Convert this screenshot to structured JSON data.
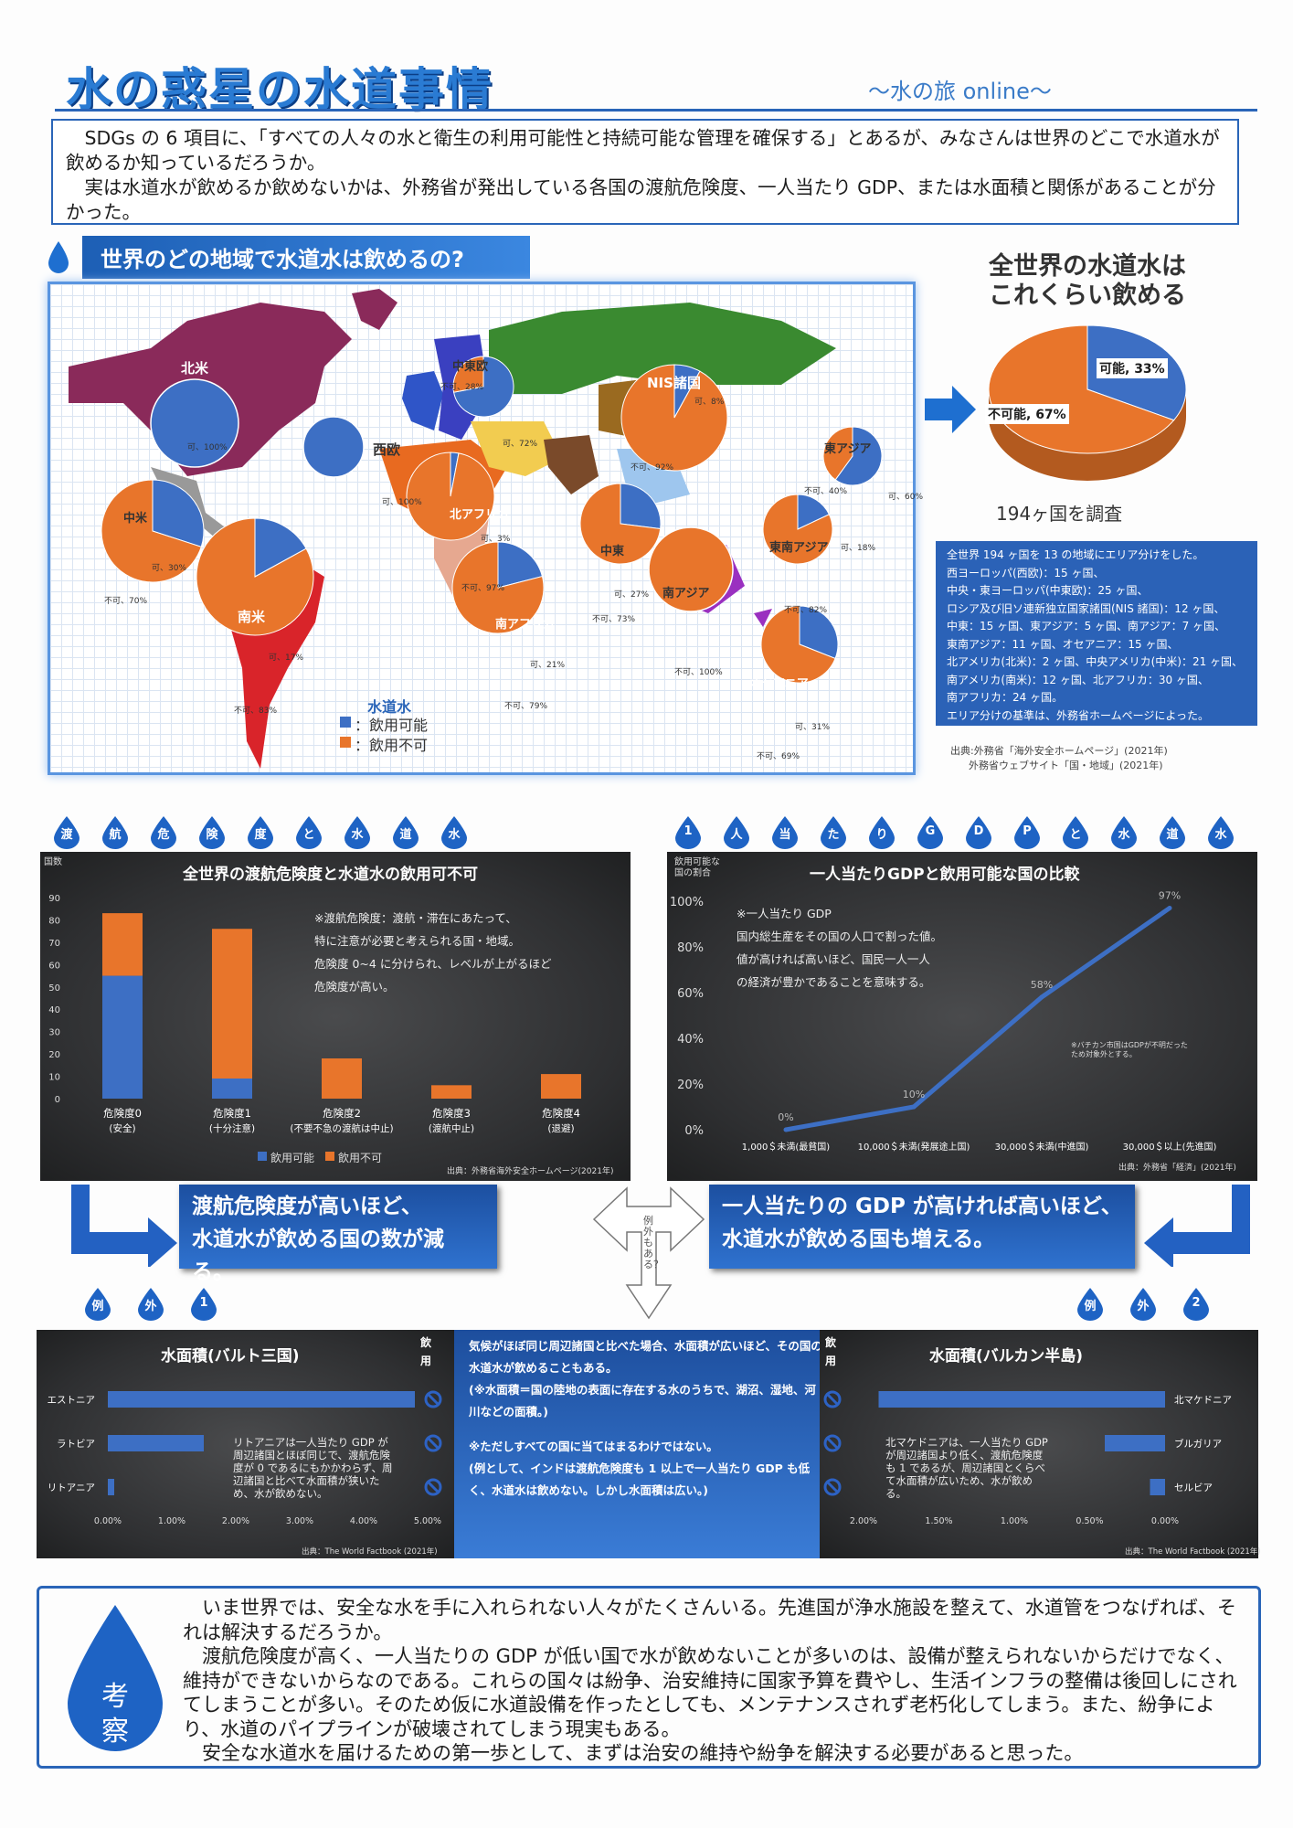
{
  "header": {
    "title": "水の惑星の水道事情",
    "subtitle": "〜水の旅 online〜"
  },
  "intro": {
    "p1": "SDGs の 6 項目に、「すべての人々の水と衛生の利用可能性と持続可能な管理を確保する」とあるが、みなさんは世界のどこで水道水が飲めるか知っているだろうか。",
    "p2": "実は水道水が飲めるか飲めないかは、外務省が発出している各国の渡航危険度、一人当たり GDP、または水面積と関係があることが分かった。"
  },
  "map": {
    "heading": "世界のどの地域で水道水は飲めるの?",
    "legend": {
      "title": "水道水",
      "ok": "：飲用可能",
      "ng": "：飲用不可"
    },
    "regions": [
      {
        "name": "北米",
        "ok": 100,
        "ok_label": "可、100%",
        "ng_label": ""
      },
      {
        "name": "中東欧",
        "ok": 72,
        "ok_label": "可、72%",
        "ng_label": "不可、28%"
      },
      {
        "name": "西欧",
        "ok": 100,
        "ok_label": "可、100%",
        "ng_label": ""
      },
      {
        "name": "NIS諸国",
        "ok": 8,
        "ok_label": "可、8%",
        "ng_label": "不可、92%"
      },
      {
        "name": "東アジア",
        "ok": 60,
        "ok_label": "可、60%",
        "ng_label": "不可、40%"
      },
      {
        "name": "中米",
        "ok": 30,
        "ok_label": "可、30%",
        "ng_label": "不可、70%"
      },
      {
        "name": "北アフリカ",
        "ok": 3,
        "ok_label": "可、3%",
        "ng_label": "不可、97%"
      },
      {
        "name": "中東",
        "ok": 27,
        "ok_label": "可、27%",
        "ng_label": "不可、73%"
      },
      {
        "name": "南アジア",
        "ok": 0,
        "ok_label": "",
        "ng_label": "不可、100%"
      },
      {
        "name": "東南アジア",
        "ok": 18,
        "ok_label": "可、18%",
        "ng_label": "不可、82%"
      },
      {
        "name": "南米",
        "ok": 17,
        "ok_label": "可、17%",
        "ng_label": "不可、83%"
      },
      {
        "name": "南アフリカ",
        "ok": 21,
        "ok_label": "可、21%",
        "ng_label": "不可、79%"
      },
      {
        "name": "オセアニア",
        "ok": 31,
        "ok_label": "可、31%",
        "ng_label": "不可、69%"
      }
    ]
  },
  "world": {
    "heading1": "全世界の水道水は",
    "heading2": "これくらい飲める",
    "ok_label": "可能, 33%",
    "ng_label": "不可能, 67%",
    "ok": 33,
    "surveyed": "194ヶ国を調査"
  },
  "area_box": [
    "全世界 194 ヶ国を 13 の地域にエリア分けをした。",
    "西ヨーロッパ(西欧)：15 ヶ国、",
    "中央・東ヨーロッパ(中東欧)：25 ヶ国、",
    "ロシア及び旧ソ連新独立国家諸国(NIS 諸国)：12 ヶ国、",
    "中東：15 ヶ国、東アジア：5 ヶ国、南アジア：7 ヶ国、",
    "東南アジア：11 ヶ国、オセアニア：15 ヶ国、",
    "北アメリカ(北米)：2 ヶ国、中央アメリカ(中米)：21 ヶ国、",
    "南アメリカ(南米)：12 ヶ国、北アフリカ：30 ヶ国、",
    "南アフリカ：24 ヶ国。",
    "エリア分けの基準は、外務省ホームページによった。"
  ],
  "sources": {
    "line1": "出典:外務省「海外安全ホームページ」(2021年)",
    "line2": "外務省ウェブサイト「国・地域」(2021年)"
  },
  "drops_left": [
    "渡",
    "航",
    "危",
    "険",
    "度",
    "と",
    "水",
    "道",
    "水"
  ],
  "drops_right": [
    "1",
    "人",
    "当",
    "た",
    "り",
    "G",
    "D",
    "P",
    "と",
    "水",
    "道",
    "水"
  ],
  "chart1": {
    "title": "全世界の渡航危険度と水道水の飲用可不可",
    "ylabel": "国数",
    "note": [
      "※渡航危険度：渡航・滞在にあたって、",
      "特に注意が必要と考えられる国・地域。",
      "危険度 0~4 に分けられ、レベルが上がるほど",
      "危険度が高い。"
    ],
    "legend": {
      "ok": "飲用可能",
      "ng": "飲用不可"
    },
    "source": "出典：外務省海外安全ホームページ(2021年)"
  },
  "chart2": {
    "title": "一人当たりGDPと飲用可能な国の比較",
    "ylabel1": "飲用可能な",
    "ylabel2": "国の割合",
    "note": [
      "※一人当たり GDP",
      "国内総生産をその国の人口で割った値。",
      "値が高ければ高いほど、国民一人一人",
      "の経済が豊かであることを意味する。"
    ],
    "footnote1": "※バチカン市国はGDPが不明だった",
    "footnote2": "ため対象外とする。",
    "source": "出典：外務省「経済」(2021年)"
  },
  "chart_data": [
    {
      "type": "bar",
      "title": "全世界の渡航危険度と水道水の飲用可不可",
      "ylabel": "国数",
      "categories": [
        "危険度0",
        "危険度1",
        "危険度2",
        "危険度3",
        "危険度4"
      ],
      "subcategories": [
        "(安全)",
        "(十分注意)",
        "(不要不急の渡航は中止)",
        "(渡航中止)",
        "(退避)"
      ],
      "series": [
        {
          "name": "飲用可能",
          "values": [
            55,
            9,
            0,
            0,
            0
          ],
          "color": "#3d6fc4"
        },
        {
          "name": "飲用不可",
          "values": [
            28,
            67,
            18,
            6,
            11
          ],
          "color": "#e8752b"
        }
      ],
      "ylim": [
        0,
        90
      ],
      "yticks": [
        0,
        10,
        20,
        30,
        40,
        50,
        60,
        70,
        80,
        90
      ]
    },
    {
      "type": "line",
      "title": "一人当たりGDPと飲用可能な国の比較",
      "categories": [
        "1,000＄未満(最貧国)",
        "10,000＄未満(発展途上国)",
        "30,000＄未満(中進国)",
        "30,000＄以上(先進国)"
      ],
      "values": [
        0,
        10,
        58,
        97
      ],
      "labels": [
        "0%",
        "10%",
        "58%",
        "97%"
      ],
      "yticks": [
        "0%",
        "20%",
        "40%",
        "60%",
        "80%",
        "100%"
      ],
      "ylim": [
        0,
        100
      ]
    },
    {
      "type": "bar",
      "title": "水面積(バルト三国)",
      "orientation": "horizontal",
      "categories": [
        "エストニア",
        "ラトビア",
        "リトアニア"
      ],
      "values": [
        4.8,
        1.5,
        0.1
      ],
      "xticks": [
        "0.00%",
        "1.00%",
        "2.00%",
        "3.00%",
        "4.00%",
        "5.00%"
      ],
      "xlim": [
        0,
        5
      ]
    },
    {
      "type": "bar",
      "title": "水面積(バルカン半島)",
      "orientation": "horizontal",
      "reversed": true,
      "categories": [
        "北マケドニア",
        "ブルガリア",
        "セルビア"
      ],
      "values": [
        1.9,
        0.4,
        0.1
      ],
      "xticks": [
        "2.00%",
        "1.50%",
        "1.00%",
        "0.50%",
        "0.00%"
      ],
      "xlim": [
        0,
        2
      ]
    }
  ],
  "conclusion_left": {
    "l1": "渡航危険度が高いほど、",
    "l2": "水道水が飲める国の数が減る。"
  },
  "conclusion_right": {
    "l1": "一人当たりの GDP が高ければ高いほど、",
    "l2": "水道水が飲める国も増える。"
  },
  "exception_arrow": "例外もある？",
  "exception1": {
    "drops": [
      "例",
      "外",
      "1"
    ],
    "title": "水面積(バルト三国)",
    "col": "飲用",
    "note": "リトアニアは一人当たり GDP が周辺諸国とほぼ同じで、渡航危険度が 0 であるにもかかわらず、周辺諸国と比べて水面積が狭いため、水が飲めない。",
    "source": "出典：The World Factbook (2021年)"
  },
  "exception2": {
    "drops": [
      "例",
      "外",
      "2"
    ],
    "title": "水面積(バルカン半島)",
    "col": "飲用",
    "note": "北マケドニアは、一人当たり GDP が周辺諸国より低く、渡航危険度も 1 であるが、周辺諸国とくらべて水面積が広いため、水が飲める。",
    "source": "出典：The World Factbook (2021年)"
  },
  "middle_box": {
    "p1": "気候がほぼ同じ周辺諸国と比べた場合、水面積が広いほど、その国の水道水が飲めることもある。",
    "p2": "(※水面積＝国の陸地の表面に存在する水のうちで、湖沼、湿地、河川などの面積。)",
    "p3": "※ただしすべての国に当てはまるわけではない。",
    "p4": "(例として、インドは渡航危険度も 1 以上で一人当たり GDP も低く、水道水は飲めない。しかし水面積は広い。)"
  },
  "kosatsu": {
    "label": "考察",
    "paragraphs": [
      "いま世界では、安全な水を手に入れられない人々がたくさんいる。先進国が浄水施設を整えて、水道管をつなげれば、それは解決するだろうか。",
      "渡航危険度が高く、一人当たりの GDP が低い国で水が飲めないことが多いのは、設備が整えられないからだけでなく、維持ができないからなのである。これらの国々は紛争、治安維持に国家予算を費やし、生活インフラの整備は後回しにされてしまうことが多い。そのため仮に水道設備を作ったとしても、メンテナンスされず老朽化してしまう。また、紛争により、水道のパイプラインが破壊されてしまう現実もある。",
      "安全な水道水を届けるための第一歩として、まずは治安の維持や紛争を解決する必要があると思った。"
    ]
  },
  "colors": {
    "ok": "#3d6fc4",
    "ng": "#e8752b",
    "accent": "#2a65b8"
  }
}
